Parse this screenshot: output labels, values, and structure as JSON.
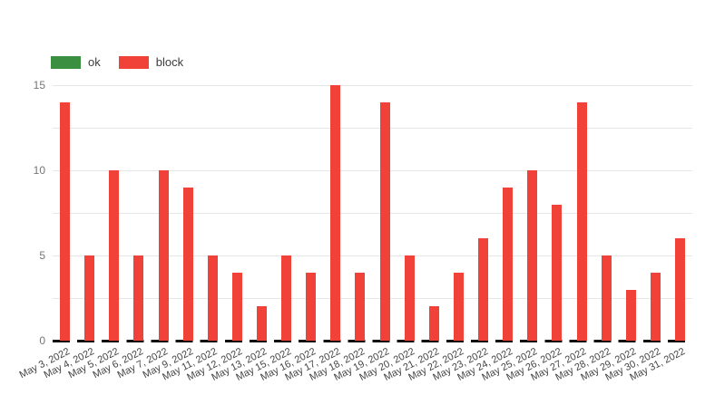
{
  "chart_data": {
    "type": "bar",
    "title": "",
    "xlabel": "",
    "ylabel": "",
    "categories": [
      "May 3, 2022",
      "May 4, 2022",
      "May 5, 2022",
      "May 6, 2022",
      "May 7, 2022",
      "May 9, 2022",
      "May 11, 2022",
      "May 12, 2022",
      "May 13, 2022",
      "May 15, 2022",
      "May 16, 2022",
      "May 17, 2022",
      "May 18, 2022",
      "May 19, 2022",
      "May 20, 2022",
      "May 21, 2022",
      "May 22, 2022",
      "May 23, 2022",
      "May 24, 2022",
      "May 25, 2022",
      "May 26, 2022",
      "May 27, 2022",
      "May 28, 2022",
      "May 29, 2022",
      "May 30, 2022",
      "May 31, 2022"
    ],
    "series": [
      {
        "name": "ok",
        "color": "#3a8f41",
        "values": [
          0,
          0,
          0,
          0,
          0,
          0,
          0,
          0,
          0,
          0,
          0,
          0,
          0,
          0,
          0,
          0,
          0,
          0,
          0,
          0,
          0,
          0,
          0,
          0,
          0,
          0
        ]
      },
      {
        "name": "block",
        "color": "#f04238",
        "values": [
          14,
          5,
          10,
          5,
          10,
          9,
          5,
          4,
          2,
          5,
          4,
          15,
          4,
          14,
          5,
          2,
          4,
          6,
          9,
          10,
          8,
          14,
          5,
          3,
          4,
          6
        ]
      }
    ],
    "ylim": [
      0,
      15
    ],
    "yticks": [
      0,
      5,
      10,
      15
    ],
    "gridline_step": 2.5,
    "grid": "on",
    "legend_position": "top-left",
    "colors": {
      "gridline": "#e6e6e6",
      "baseline": "#111111",
      "y_tick_label": "#757575",
      "x_tick_label": "#444444",
      "background": "#ffffff"
    }
  }
}
